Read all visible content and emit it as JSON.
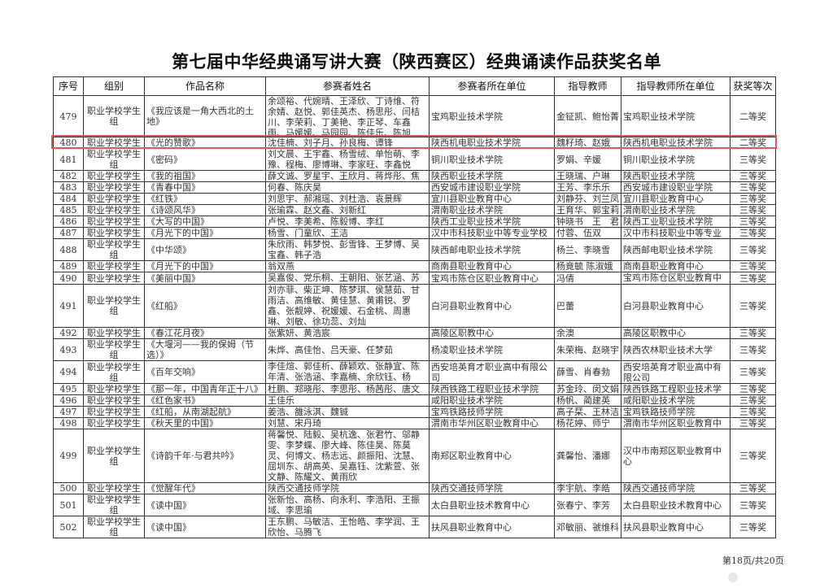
{
  "title": "第七届中华经典诵写讲大赛（陕西赛区）经典诵读作品获奖名单",
  "highlight_color": "#e2575a",
  "columns": [
    "序号",
    "组别",
    "作品名称",
    "参赛者姓名",
    "参赛者所在单位",
    "指导教师",
    "指导教师所在单位",
    "获奖等次"
  ],
  "rows": [
    {
      "no": "479",
      "group": "职业学校学生组",
      "work": "《我应该是一角大西北的土地》",
      "names": "余颂裕、代婉晴、王泽欣、丁诗维、符余婧、赵悦、郭佳英杰、杨思彤、闫桔川、李荣莉、丁美艳、李正琴、车鑫雨、马媛媛、马园园、陈佳乐、陈旭萌、余国婷",
      "unit": "宝鸡职业技术学院",
      "teacher": "金钲凯、鲍怡菁",
      "tunit": "宝鸡职业技术学院",
      "award": "二等奖"
    },
    {
      "no": "480",
      "group": "职业学校学生",
      "work": "《光的赞歌》",
      "names": "沈佳楠、刘子月、孙良梅、谭锋",
      "unit": "陕西机电职业技术学院",
      "teacher": "魏籽琦、赵娥",
      "tunit": "陕西机电职业技术学院",
      "award": "二等奖",
      "highlighted": true
    },
    {
      "no": "481",
      "group": "职业学校学生组",
      "work": "《密码》",
      "names": "刘文晨、王宇鑫、杨雪绒、单怡萌、李豫、程梅、廖博琳、李家旺、李鑫悦",
      "unit": "铜川职业技术学院",
      "teacher": "罗娟、辛媛",
      "tunit": "铜川职业技术学院",
      "award": "三等奖"
    },
    {
      "no": "482",
      "group": "职业学校学生",
      "work": "《我的祖国》",
      "names": "薛文诚、罗星宇、王欣月、蒋烨彤、焦学",
      "unit": "陕西职业技术学院",
      "teacher": "王晓瑞、户琳",
      "tunit": "陕西职业技术学院",
      "award": "三等奖"
    },
    {
      "no": "483",
      "group": "职业学校学生",
      "work": "《青春中国》",
      "names": "何春、陈庆昊",
      "unit": "西安城市建设职业学院",
      "teacher": "王芳、李乐乐",
      "tunit": "西安城市建设职业学院",
      "award": "三等奖"
    },
    {
      "no": "484",
      "group": "职业学校学生",
      "work": "《红铁》",
      "names": "刘思宇、郝湘瑶、刘杜浩、袁景辉",
      "unit": "宜川县职业教育中心",
      "teacher": "刘静芬、刘兰凤",
      "tunit": "宜川县职业教育中心",
      "award": "三等奖"
    },
    {
      "no": "485",
      "group": "职业学校学生",
      "work": "《诗颂风华》",
      "names": "张瑜霖、赵文鑫、刘新红",
      "unit": "渭南职业技术学院",
      "teacher": "王育华、郭宝莉",
      "tunit": "渭南职业技术学院",
      "award": "三等奖"
    },
    {
      "no": "486",
      "group": "职业学校学生",
      "work": "《大写的中国》",
      "names": "卢悦、李美希、陈毅博、李红",
      "unit": "陕西工业职业技术学院",
      "teacher": "钟晓书　王　君",
      "tunit": "陕西工业职业技术学院",
      "award": "三等奖"
    },
    {
      "no": "487",
      "group": "职业学校学生",
      "work": "《月光下的中国》",
      "names": "杨雪、门童欣、王洁",
      "unit": "汉中市科技职业中等专业学校",
      "teacher": "付蓉、伍双",
      "tunit": "汉中市科技职业中等专业学",
      "award": "三等奖"
    },
    {
      "no": "488",
      "group": "职业学校学生组",
      "work": "《中华颂》",
      "names": "朱欣雨、韩梦悦、彭雪锋、王梦博、吴宝鑫、韩子浩",
      "unit": "陕西邮电职业技术学院",
      "teacher": "杨兰、李晓雪",
      "tunit": "陕西邮电职业技术学院",
      "award": "三等奖"
    },
    {
      "no": "489",
      "group": "职业学校学生",
      "work": "《月光下的中国》",
      "names": "翁双燕",
      "unit": "商南县职业教育中心",
      "teacher": "杨竟毓 陈淑娥",
      "tunit": "商南县职业教育中心",
      "award": "三等奖"
    },
    {
      "no": "490",
      "group": "职业学校学生",
      "work": "《美丽中国》",
      "names": "吴嘉俊、党乐桐、王朝阳、张艺涵、苏晨",
      "unit": "宝鸡市陈仓区职业教育中心",
      "teacher": "冯倩",
      "tunit": "宝鸡市陈仓区职业教育中心",
      "award": "三等奖"
    },
    {
      "no": "491",
      "group": "职业学校学生组",
      "work": "《红船》",
      "names": "刘亦菲、柴正坤、陈梦琪、侯慧茹、甘雨洁、高维敏、黄佳慧、黄甫锐、罗鑫、张靓婷、祝媛媛、石金桃、周惠琳、刘敏、徐功蕊、刘灿",
      "unit": "白河县职业教育中心",
      "teacher": "巴蕾",
      "tunit": "白河县职业教育中心",
      "award": "三等奖"
    },
    {
      "no": "492",
      "group": "职业学校学生",
      "work": "《春江花月夜》",
      "names": "张紫妍、黄浩宸",
      "unit": "高陵区职教中心",
      "teacher": "余澳",
      "tunit": "高陵区职教中心",
      "award": "三等奖"
    },
    {
      "no": "493",
      "group": "职业学校学生组",
      "work": "《大堰河——我的保姆（节选）》",
      "names": "朱烨、高佳怡、吕天豪、任梦茹",
      "unit": "杨凌职业技术学院",
      "teacher": "朱荣梅、赵晓宇",
      "tunit": "陕西农林职业技术大学",
      "award": "三等奖"
    },
    {
      "no": "494",
      "group": "职业学校学生组",
      "work": "《百年交响》",
      "names": "李佳煊、郭佳析、薛颖欢、张静宜、陈年清、张浩涵、李嘉楠、余欣钰、杨卓、刘",
      "unit": "西安培英育才职业高中有限公司",
      "teacher": "薛雪、肖春勃",
      "tunit": "西安培英育才职业高中有限公司",
      "award": "三等奖"
    },
    {
      "no": "495",
      "group": "职业学校学生",
      "work": "《那一年，中国青年正十八》",
      "names": "杜鹏、郑晓彤、李思彤、杨茜彤、唐文佳",
      "unit": "陕西铁路工程职业技术学院",
      "teacher": "苏金玲、闵文娟",
      "tunit": "陕西铁路工程职业技术学院",
      "award": "三等奖"
    },
    {
      "no": "496",
      "group": "职业学校学生",
      "work": "《红色家书》",
      "names": "王佳乐",
      "unit": "咸阳职业技术学院",
      "teacher": "杨帆、蔺建英",
      "tunit": "咸阳职业技术学院",
      "award": "三等奖"
    },
    {
      "no": "497",
      "group": "职业学校学生",
      "work": "《红船，从南湖起航》",
      "names": "姜浩、雒泳淇、魏铖",
      "unit": "宝鸡铁路技师学院",
      "teacher": "高子栞、王林洁",
      "tunit": "宝鸡铁路技师学院",
      "award": "三等奖"
    },
    {
      "no": "498",
      "group": "职业学校学生",
      "work": "《秋天里的中国》",
      "names": "刘慧、宋丹琦",
      "unit": "渭南市华州区职业教育中心",
      "teacher": "杨花婷、师宁",
      "tunit": "渭南市华州区职业教育中心",
      "award": "三等奖"
    },
    {
      "no": "499",
      "group": "职业学校学生组",
      "work": "《诗韵千年·与君共吟》",
      "names": "蒋馨悦、陆毅、吴杭逸、张君竹、邬静雯、李梦蝶、廖大峰、陈佳昊、陈莫灵、何博文、杨志远、颜振阳、沈慧、屈圳东、胡高英、吴嘉钰、沈紫萱、张文静、陈耀文、黄雨欣",
      "unit": "南郑区职业教育中心",
      "teacher": "龚馨怡、潘娜",
      "tunit": "汉中市南郑区职业教育中心",
      "award": "三等奖"
    },
    {
      "no": "500",
      "group": "职业学校学生",
      "work": "《觉醒年代》",
      "names": "陕西交通技师学院",
      "unit": "陕西交通技师学院",
      "teacher": "李宇航、李皓",
      "tunit": "陕西交通技师学院",
      "award": "三等奖"
    },
    {
      "no": "501",
      "group": "职业学校学生组",
      "work": "《读中国》",
      "names": "张新怡、高杨、向永利、李浩阳、王振域、李思瑜",
      "unit": "太白县职业技术教育中心",
      "teacher": "张春宁、李芳",
      "tunit": "太白县职业技术教育中心",
      "award": "三等奖"
    },
    {
      "no": "502",
      "group": "职业学校学生组",
      "work": "《读中国》",
      "names": "王东鹏、马敏洁、王怡皓、李学润、王欣怡、马腾飞",
      "unit": "扶风县职业教育中心",
      "teacher": "邓敏丽、虢维科",
      "tunit": "扶风县职业教育中心",
      "award": "三等奖"
    }
  ],
  "footer": {
    "page_label": "第18页/共20页"
  }
}
